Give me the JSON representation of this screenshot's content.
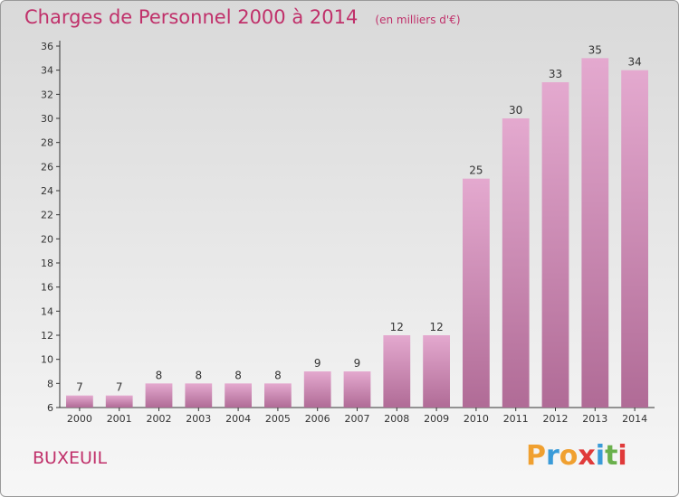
{
  "chart_data": {
    "type": "bar",
    "title": "Charges de Personnel 2000 à 2014",
    "subtitle": "(en milliers d'€)",
    "categories": [
      "2000",
      "2001",
      "2002",
      "2003",
      "2004",
      "2005",
      "2006",
      "2007",
      "2008",
      "2009",
      "2010",
      "2011",
      "2012",
      "2013",
      "2014"
    ],
    "values": [
      7,
      7,
      8,
      8,
      8,
      8,
      9,
      9,
      12,
      12,
      25,
      30,
      33,
      35,
      34
    ],
    "ylim": [
      6,
      36
    ],
    "yticks": [
      6,
      8,
      10,
      12,
      14,
      16,
      18,
      20,
      22,
      24,
      26,
      28,
      30,
      32,
      34,
      36
    ],
    "grid": false,
    "bar_color_top": "#e4a9cf",
    "bar_color_bottom": "#b06b96"
  },
  "commune": "BUXEUIL",
  "brand": {
    "letters": [
      "P",
      "r",
      "o",
      "x",
      "i",
      "t",
      "i"
    ],
    "colors": [
      "#f0a030",
      "#3a9bd8",
      "#f0a030",
      "#e03a3a",
      "#3a9bd8",
      "#6ab04c",
      "#e03a3a"
    ]
  }
}
